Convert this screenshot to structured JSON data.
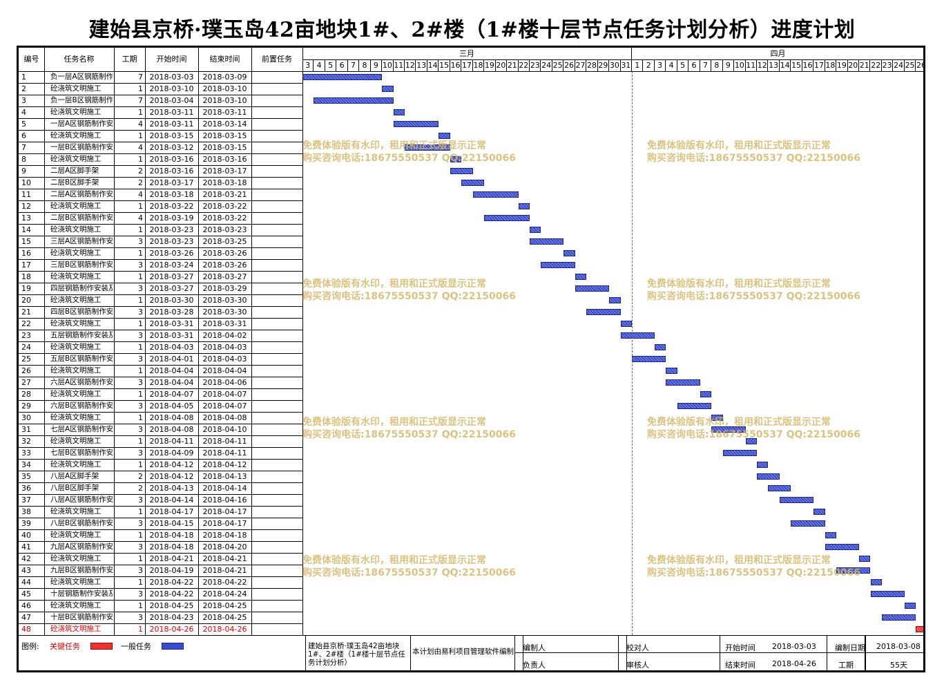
{
  "title": "建始县京桥·璞玉岛42亩地块1#、2#楼（1#楼十层节点任务计划分析）进度计划",
  "headers": {
    "id": "编号",
    "name": "任务名称",
    "dur": "工期",
    "start": "开始时间",
    "end": "结束时间",
    "pred": "前置任务"
  },
  "months": [
    "三月",
    "四月"
  ],
  "days": {
    "march": [
      "3",
      "4",
      "5",
      "6",
      "7",
      "8",
      "9",
      "10",
      "11",
      "12",
      "13",
      "14",
      "15",
      "16",
      "17",
      "18",
      "19",
      "20",
      "21",
      "22",
      "23",
      "24",
      "25",
      "26",
      "27",
      "28",
      "29",
      "30",
      "31"
    ],
    "april": [
      "1",
      "2",
      "3",
      "4",
      "5",
      "6",
      "7",
      "8",
      "9",
      "10",
      "11",
      "12",
      "13",
      "14",
      "15",
      "16",
      "17",
      "18",
      "19",
      "20",
      "21",
      "22",
      "23",
      "24",
      "25",
      "26"
    ]
  },
  "tasks": [
    {
      "id": "1",
      "name": "负一层A区钢筋制作安装及模板",
      "dur": "7",
      "start": "2018-03-03",
      "end": "2018-03-09",
      "critical": false
    },
    {
      "id": "2",
      "name": "砼浇筑文明施工",
      "dur": "1",
      "start": "2018-03-10",
      "end": "2018-03-10",
      "critical": false
    },
    {
      "id": "3",
      "name": "负一层B区钢筋制作安装及模板",
      "dur": "7",
      "start": "2018-03-04",
      "end": "2018-03-10",
      "critical": false
    },
    {
      "id": "4",
      "name": "砼浇筑文明施工",
      "dur": "1",
      "start": "2018-03-11",
      "end": "2018-03-11",
      "critical": false
    },
    {
      "id": "5",
      "name": "一层A区钢筋制作安装及模板",
      "dur": "4",
      "start": "2018-03-11",
      "end": "2018-03-14",
      "critical": false
    },
    {
      "id": "6",
      "name": "砼浇筑文明施工",
      "dur": "1",
      "start": "2018-03-15",
      "end": "2018-03-15",
      "critical": false
    },
    {
      "id": "7",
      "name": "一层B区钢筋制作安装及模板",
      "dur": "4",
      "start": "2018-03-12",
      "end": "2018-03-15",
      "critical": false
    },
    {
      "id": "8",
      "name": "砼浇筑文明施工",
      "dur": "1",
      "start": "2018-03-16",
      "end": "2018-03-16",
      "critical": false
    },
    {
      "id": "9",
      "name": "二层A区脚手架",
      "dur": "2",
      "start": "2018-03-16",
      "end": "2018-03-17",
      "critical": false
    },
    {
      "id": "10",
      "name": "二层B区脚手架",
      "dur": "2",
      "start": "2018-03-17",
      "end": "2018-03-18",
      "critical": false
    },
    {
      "id": "11",
      "name": "二层A区钢筋制作安装及模板",
      "dur": "4",
      "start": "2018-03-18",
      "end": "2018-03-21",
      "critical": false
    },
    {
      "id": "12",
      "name": "砼浇筑文明施工",
      "dur": "1",
      "start": "2018-03-22",
      "end": "2018-03-22",
      "critical": false
    },
    {
      "id": "13",
      "name": "二层B区钢筋制作安装及模板",
      "dur": "4",
      "start": "2018-03-19",
      "end": "2018-03-22",
      "critical": false
    },
    {
      "id": "14",
      "name": "砼浇筑文明施工",
      "dur": "1",
      "start": "2018-03-23",
      "end": "2018-03-23",
      "critical": false
    },
    {
      "id": "15",
      "name": "三层A区钢筋制作安装及模板",
      "dur": "3",
      "start": "2018-03-23",
      "end": "2018-03-25",
      "critical": false
    },
    {
      "id": "16",
      "name": "砼浇筑文明施工",
      "dur": "1",
      "start": "2018-03-26",
      "end": "2018-03-26",
      "critical": false
    },
    {
      "id": "17",
      "name": "三层B区钢筋制作安装及模板",
      "dur": "3",
      "start": "2018-03-24",
      "end": "2018-03-26",
      "critical": false
    },
    {
      "id": "18",
      "name": "砼浇筑文明施工",
      "dur": "1",
      "start": "2018-03-27",
      "end": "2018-03-27",
      "critical": false
    },
    {
      "id": "19",
      "name": "四层钢筋制作安装及模板安",
      "dur": "3",
      "start": "2018-03-27",
      "end": "2018-03-29",
      "critical": false
    },
    {
      "id": "20",
      "name": "砼浇筑文明施工",
      "dur": "1",
      "start": "2018-03-30",
      "end": "2018-03-30",
      "critical": false
    },
    {
      "id": "21",
      "name": "四层B区钢筋制作安装及模板",
      "dur": "3",
      "start": "2018-03-28",
      "end": "2018-03-30",
      "critical": false
    },
    {
      "id": "22",
      "name": "砼浇筑文明施工",
      "dur": "1",
      "start": "2018-03-31",
      "end": "2018-03-31",
      "critical": false
    },
    {
      "id": "23",
      "name": "五层钢筋制作安装及模板安",
      "dur": "3",
      "start": "2018-03-31",
      "end": "2018-04-02",
      "critical": false
    },
    {
      "id": "24",
      "name": "砼浇筑文明施工",
      "dur": "1",
      "start": "2018-04-03",
      "end": "2018-04-03",
      "critical": false
    },
    {
      "id": "25",
      "name": "五层B区钢筋制作安装及模板",
      "dur": "3",
      "start": "2018-04-01",
      "end": "2018-04-03",
      "critical": false
    },
    {
      "id": "26",
      "name": "砼浇筑文明施工",
      "dur": "1",
      "start": "2018-04-04",
      "end": "2018-04-04",
      "critical": false
    },
    {
      "id": "27",
      "name": "六层A区钢筋制作安装及模板",
      "dur": "3",
      "start": "2018-04-04",
      "end": "2018-04-06",
      "critical": false
    },
    {
      "id": "28",
      "name": "砼浇筑文明施工",
      "dur": "1",
      "start": "2018-04-07",
      "end": "2018-04-07",
      "critical": false
    },
    {
      "id": "29",
      "name": "六层B区钢筋制作安装及模板",
      "dur": "3",
      "start": "2018-04-05",
      "end": "2018-04-07",
      "critical": false
    },
    {
      "id": "30",
      "name": "砼浇筑文明施工",
      "dur": "1",
      "start": "2018-04-08",
      "end": "2018-04-08",
      "critical": false
    },
    {
      "id": "31",
      "name": "七层A区钢筋制作安装及模板",
      "dur": "3",
      "start": "2018-04-08",
      "end": "2018-04-10",
      "critical": false
    },
    {
      "id": "32",
      "name": "砼浇筑文明施工",
      "dur": "1",
      "start": "2018-04-11",
      "end": "2018-04-11",
      "critical": false
    },
    {
      "id": "33",
      "name": "七层B区钢筋制作安装及模板",
      "dur": "3",
      "start": "2018-04-09",
      "end": "2018-04-11",
      "critical": false
    },
    {
      "id": "34",
      "name": "砼浇筑文明施工",
      "dur": "1",
      "start": "2018-04-12",
      "end": "2018-04-12",
      "critical": false
    },
    {
      "id": "35",
      "name": "八层A区脚手架",
      "dur": "2",
      "start": "2018-04-12",
      "end": "2018-04-13",
      "critical": false
    },
    {
      "id": "36",
      "name": "八层B区脚手架",
      "dur": "2",
      "start": "2018-04-13",
      "end": "2018-04-14",
      "critical": false
    },
    {
      "id": "37",
      "name": "八层A区钢筋制作安装及模板",
      "dur": "3",
      "start": "2018-04-14",
      "end": "2018-04-16",
      "critical": false
    },
    {
      "id": "38",
      "name": "砼浇筑文明施工",
      "dur": "1",
      "start": "2018-04-17",
      "end": "2018-04-17",
      "critical": false
    },
    {
      "id": "39",
      "name": "八层B区钢筋制作安装及模板",
      "dur": "3",
      "start": "2018-04-15",
      "end": "2018-04-17",
      "critical": false
    },
    {
      "id": "40",
      "name": "砼浇筑文明施工",
      "dur": "1",
      "start": "2018-04-18",
      "end": "2018-04-18",
      "critical": false
    },
    {
      "id": "41",
      "name": "九层A区钢筋制作安装及模板",
      "dur": "3",
      "start": "2018-04-18",
      "end": "2018-04-20",
      "critical": false
    },
    {
      "id": "42",
      "name": "砼浇筑文明施工",
      "dur": "1",
      "start": "2018-04-21",
      "end": "2018-04-21",
      "critical": false
    },
    {
      "id": "43",
      "name": "九层B区钢筋制作安装及模板",
      "dur": "3",
      "start": "2018-04-19",
      "end": "2018-04-21",
      "critical": false
    },
    {
      "id": "44",
      "name": "砼浇筑文明施工",
      "dur": "1",
      "start": "2018-04-22",
      "end": "2018-04-22",
      "critical": false
    },
    {
      "id": "45",
      "name": "十层钢筋制作安装及模板安",
      "dur": "3",
      "start": "2018-04-22",
      "end": "2018-04-24",
      "critical": false
    },
    {
      "id": "46",
      "name": "砼浇筑文明施工",
      "dur": "1",
      "start": "2018-04-25",
      "end": "2018-04-25",
      "critical": false
    },
    {
      "id": "47",
      "name": "十层B区钢筋制作安装及模板",
      "dur": "3",
      "start": "2018-04-23",
      "end": "2018-04-25",
      "critical": false
    },
    {
      "id": "48",
      "name": "砼浇筑文明施工",
      "dur": "1",
      "start": "2018-04-26",
      "end": "2018-04-26",
      "critical": true
    }
  ],
  "watermark": {
    "line1": "免费体验版有水印，租用和正式版显示正常",
    "line2": "购买咨询电话:18675550537 QQ:22150066"
  },
  "legend": {
    "label": "图例:",
    "critical": "关键任务",
    "normal": "一般任务"
  },
  "footer": {
    "project": "建始县京桥·璞玉岛42亩地块1#、2#楼（1#楼十层节点任务计划分析）",
    "note": "本计划由易利项目管理软件编制",
    "compiler": "编制人",
    "checker": "校对人",
    "responsible": "负责人",
    "reviewer": "审核人",
    "start_label": "开始时间",
    "start_value": "2018-03-03",
    "end_label": "结束时间",
    "end_value": "2018-04-26",
    "date_label": "编制日期",
    "date_value": "2018-03-08",
    "duration_label": "工期",
    "duration_value": "55天"
  },
  "colors": {
    "normal_bar": "#3a4ccc",
    "critical_bar": "#e33333",
    "critical_text": "#e00000",
    "watermark": "#d4b86a"
  }
}
